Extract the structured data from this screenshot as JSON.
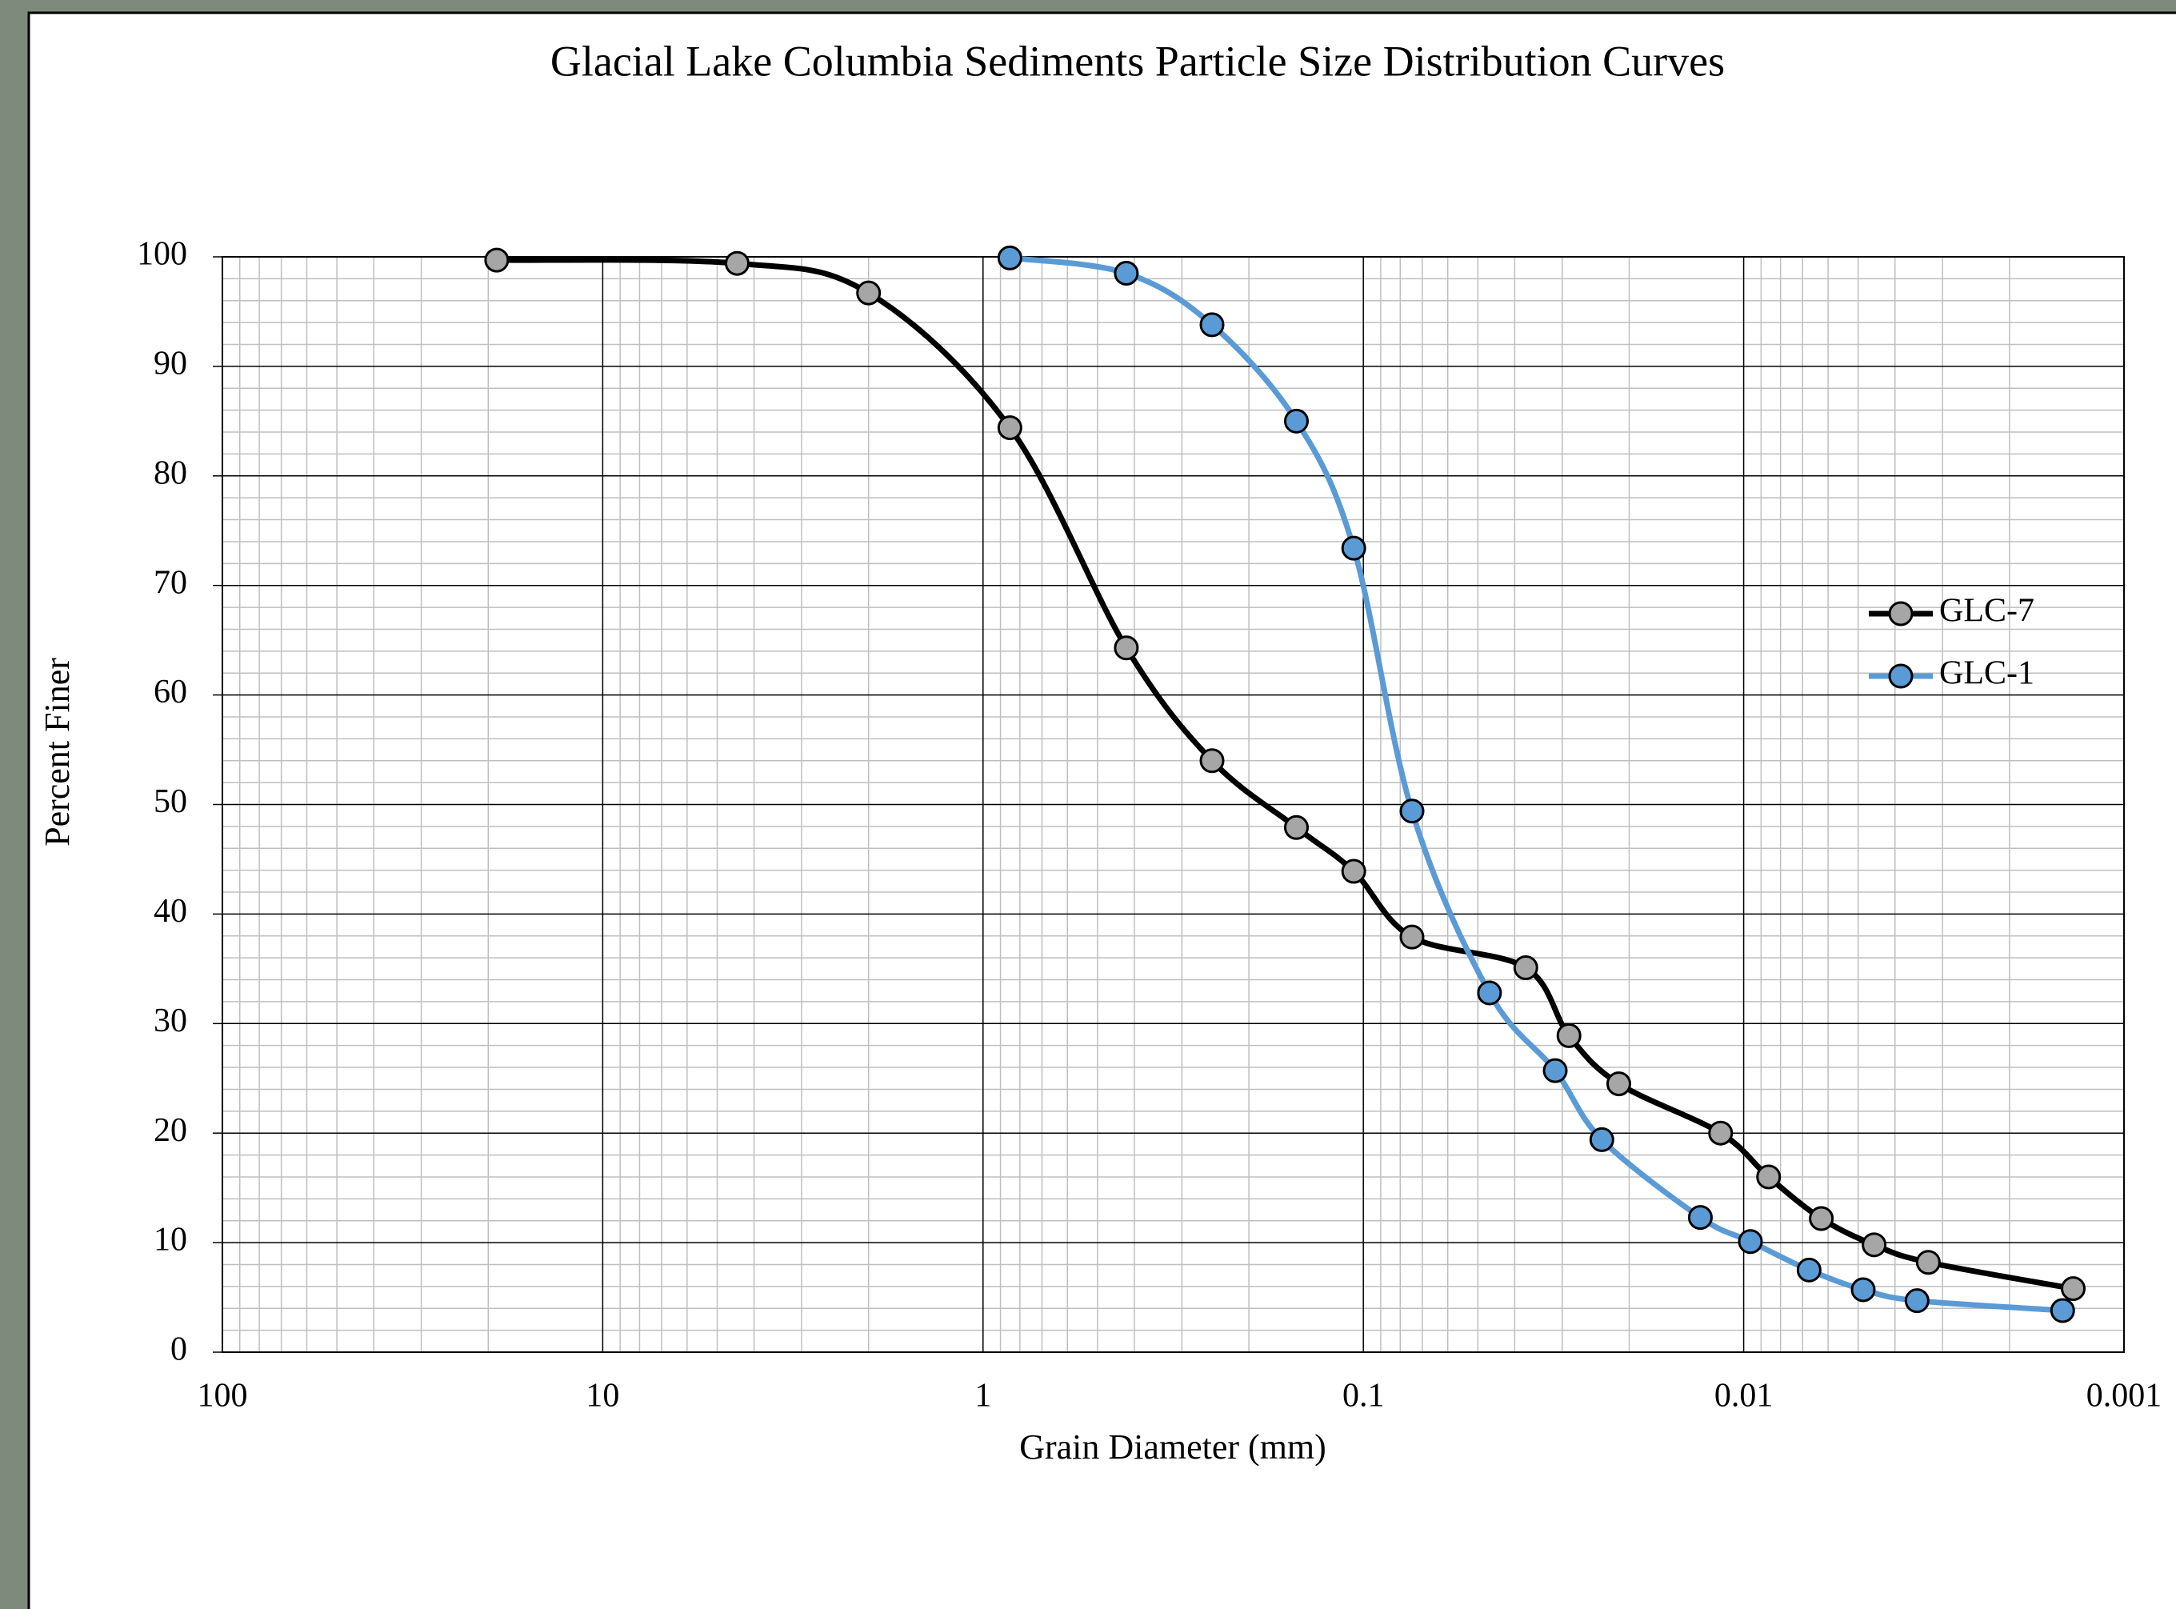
{
  "chart_data": {
    "type": "line",
    "title": "Glacial Lake Columbia Sediments Particle Size Distribution Curves",
    "x_label": "Grain Diameter (mm)",
    "y_label": "Percent Finer",
    "log_x": true,
    "x_reversed": true,
    "smooth": true,
    "grid": true,
    "minor_grid": true,
    "legend": "right",
    "xlim": [
      100,
      0.001
    ],
    "ylim": [
      0,
      100
    ],
    "xticks": [
      100,
      10,
      1,
      0.1,
      0.01,
      0.001
    ],
    "yticks": [
      0,
      10,
      20,
      30,
      40,
      50,
      60,
      70,
      80,
      90,
      100
    ],
    "series": [
      {
        "name": "GLC-7",
        "color": "#000000",
        "marker_color": "#a6a6a6",
        "x": [
          19,
          4.43,
          2,
          0.85,
          0.42,
          0.25,
          0.15,
          0.106,
          0.0745,
          0.0374,
          0.0288,
          0.0213,
          0.0115,
          0.0086,
          0.00625,
          0.00454,
          0.00327,
          0.00136
        ],
        "values": [
          99.7,
          99.4,
          96.7,
          84.4,
          64.3,
          54.0,
          47.9,
          43.9,
          37.9,
          35.1,
          28.9,
          24.5,
          20.0,
          16.0,
          12.2,
          9.8,
          8.2,
          5.8
        ]
      },
      {
        "name": "GLC-1",
        "color": "#5b9bd5",
        "marker_color": "#5b9bd5",
        "x": [
          0.85,
          0.42,
          0.25,
          0.15,
          0.106,
          0.0745,
          0.0466,
          0.0313,
          0.0236,
          0.013,
          0.0096,
          0.00673,
          0.00485,
          0.0035,
          0.00145
        ],
        "values": [
          99.9,
          98.5,
          93.8,
          85.0,
          73.4,
          49.4,
          32.8,
          25.7,
          19.4,
          12.3,
          10.1,
          7.5,
          5.7,
          4.7,
          3.8
        ]
      }
    ]
  }
}
